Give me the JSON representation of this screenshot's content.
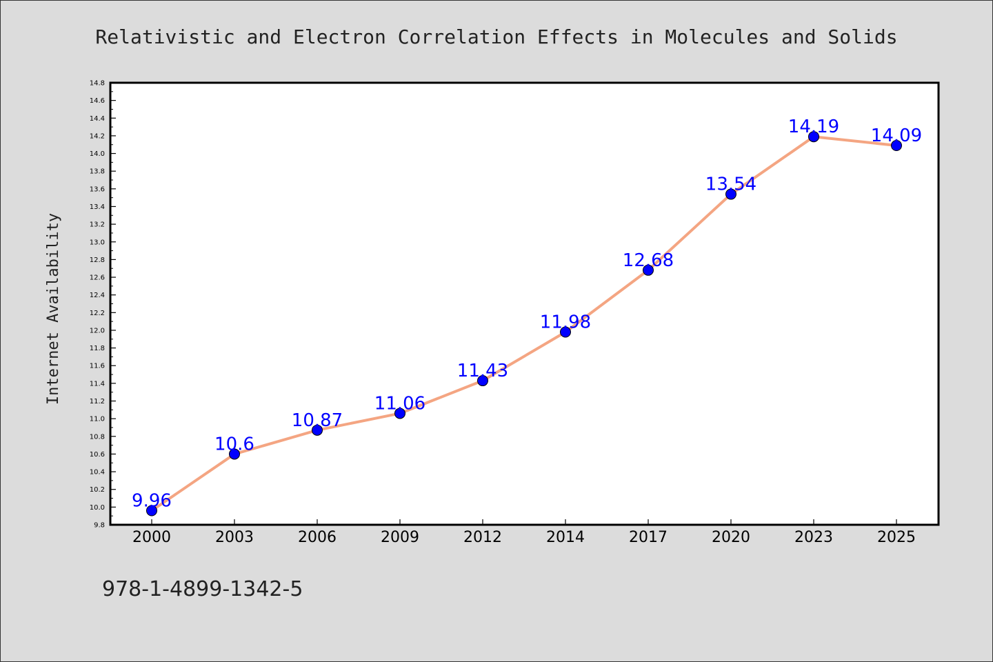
{
  "chart_data": {
    "type": "line",
    "title": "Relativistic and Electron Correlation Effects in Molecules and Solids",
    "ylabel": "Internet Availability",
    "xlabel": "",
    "categories": [
      "2000",
      "2003",
      "2006",
      "2009",
      "2012",
      "2014",
      "2017",
      "2020",
      "2023",
      "2025"
    ],
    "series": [
      {
        "values": [
          9.96,
          10.6,
          10.87,
          11.06,
          11.43,
          11.98,
          12.68,
          13.54,
          14.19,
          14.09
        ],
        "labels": [
          "9.96",
          "10.6",
          "10.87",
          "11.06",
          "11.43",
          "11.98",
          "12.68",
          "13.54",
          "14.19",
          "14.09"
        ]
      }
    ],
    "ylim": [
      9.8,
      14.8
    ],
    "y_ticks": [
      "9.8",
      "10.0",
      "10.2",
      "10.4",
      "10.6",
      "10.8",
      "11.0",
      "11.2",
      "11.4",
      "11.6",
      "11.8",
      "12.0",
      "12.2",
      "12.4",
      "12.6",
      "12.8",
      "13.0",
      "13.2",
      "13.4",
      "13.6",
      "13.8",
      "14.0",
      "14.2",
      "14.4",
      "14.6",
      "14.8"
    ],
    "grid": false,
    "legend": "none",
    "colors": {
      "line": "#f4a582",
      "marker": "#0000ff",
      "data_label": "#0000ff",
      "plot_background": "#ffffff",
      "page_background": "#dcdcdc"
    }
  },
  "footer": {
    "isbn": "978-1-4899-1342-5"
  }
}
